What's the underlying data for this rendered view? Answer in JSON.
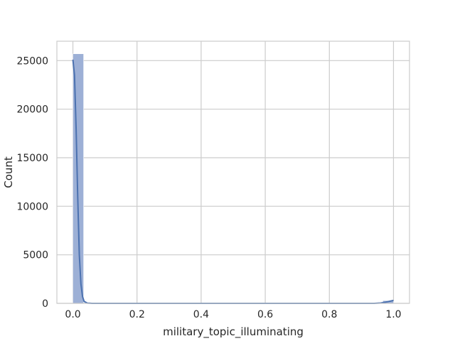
{
  "chart_data": {
    "type": "bar",
    "xlabel": "military_topic_illuminating",
    "ylabel": "Count",
    "xlim": [
      -0.05,
      1.05
    ],
    "ylim": [
      0,
      27000
    ],
    "grid": true,
    "bar_color": "#9db0d6",
    "line_color": "#4c72b0",
    "x_ticks": [
      0.0,
      0.2,
      0.4,
      0.6,
      0.8,
      1.0
    ],
    "x_tick_labels": [
      "0.0",
      "0.2",
      "0.4",
      "0.6",
      "0.8",
      "1.0"
    ],
    "y_ticks": [
      0,
      5000,
      10000,
      15000,
      20000,
      25000
    ],
    "y_tick_labels": [
      "0",
      "5000",
      "10000",
      "15000",
      "20000",
      "25000"
    ],
    "bins": [
      {
        "x0": 0.0,
        "x1": 0.0333,
        "count": 25700
      },
      {
        "x0": 0.9667,
        "x1": 1.0,
        "count": 280
      }
    ],
    "kde": [
      {
        "x": 0.0,
        "y": 25100
      },
      {
        "x": 0.005,
        "y": 23500
      },
      {
        "x": 0.01,
        "y": 18000
      },
      {
        "x": 0.015,
        "y": 11000
      },
      {
        "x": 0.02,
        "y": 5000
      },
      {
        "x": 0.025,
        "y": 2000
      },
      {
        "x": 0.03,
        "y": 700
      },
      {
        "x": 0.035,
        "y": 200
      },
      {
        "x": 0.045,
        "y": 30
      },
      {
        "x": 0.06,
        "y": 0
      },
      {
        "x": 0.94,
        "y": 0
      },
      {
        "x": 0.96,
        "y": 40
      },
      {
        "x": 0.975,
        "y": 120
      },
      {
        "x": 0.99,
        "y": 230
      },
      {
        "x": 1.0,
        "y": 300
      }
    ]
  }
}
